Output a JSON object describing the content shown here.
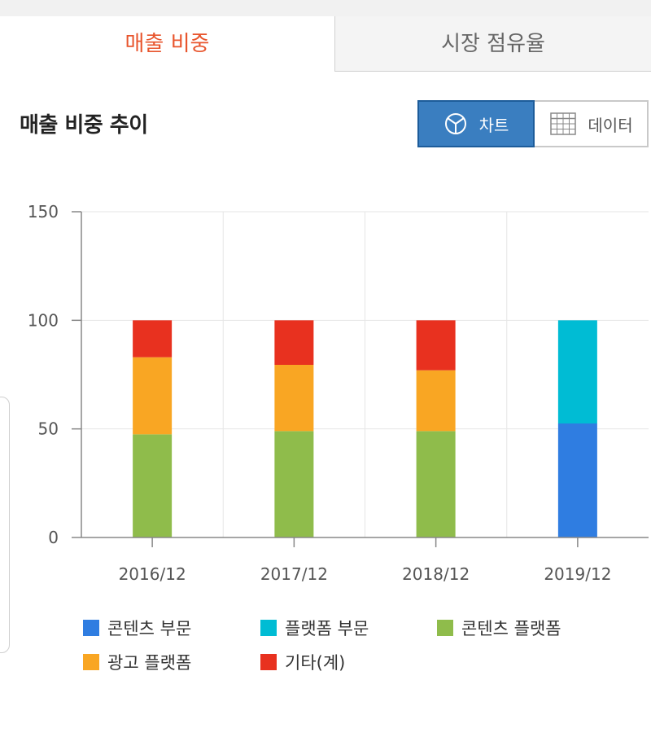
{
  "tabs": [
    {
      "label": "매출 비중",
      "active": true
    },
    {
      "label": "시장 점유율",
      "active": false
    }
  ],
  "section_title": "매출 비중 추이",
  "view_toggle": {
    "chart_label": "차트",
    "data_label": "데이터",
    "chart_icon": "pie-chart-icon",
    "data_icon": "table-grid-icon",
    "active": "chart"
  },
  "colors": {
    "accent_tab": "#e8552d",
    "toggle_active": "#3a7ec0"
  },
  "chart_data": {
    "type": "bar",
    "stacked": true,
    "categories": [
      "2016/12",
      "2017/12",
      "2018/12",
      "2019/12"
    ],
    "ylim": [
      0,
      150
    ],
    "yticks": [
      0,
      50,
      100,
      150
    ],
    "grid": true,
    "legend_position": "bottom",
    "series": [
      {
        "name": "콘텐츠 부문",
        "color": "#2f7de1",
        "values": [
          0,
          0,
          0,
          52.5
        ]
      },
      {
        "name": "플랫폼 부문",
        "color": "#00bcd4",
        "values": [
          0,
          0,
          0,
          47.5
        ]
      },
      {
        "name": "콘텐츠 플랫폼",
        "color": "#8fbc4b",
        "values": [
          47.5,
          49,
          49,
          0
        ]
      },
      {
        "name": "광고 플랫폼",
        "color": "#f9a623",
        "values": [
          35.5,
          30.5,
          28,
          0
        ]
      },
      {
        "name": "기타(계)",
        "color": "#e8311f",
        "values": [
          17,
          20.5,
          23,
          0
        ]
      }
    ]
  }
}
